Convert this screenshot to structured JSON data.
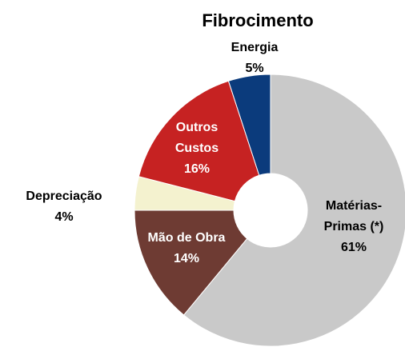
{
  "chart_data": {
    "type": "donut",
    "title": "Fibrocimento",
    "categories": [
      "Matérias-Primas (*)",
      "Mão de Obra",
      "Depreciação",
      "Outros Custos",
      "Energia"
    ],
    "values": [
      61,
      14,
      4,
      16,
      5
    ],
    "value_labels": [
      "61%",
      "14%",
      "4%",
      "16%",
      "5%"
    ],
    "colors": [
      "#c9c9c9",
      "#6e3b33",
      "#f4f2cf",
      "#c62222",
      "#0b3b7c"
    ]
  }
}
